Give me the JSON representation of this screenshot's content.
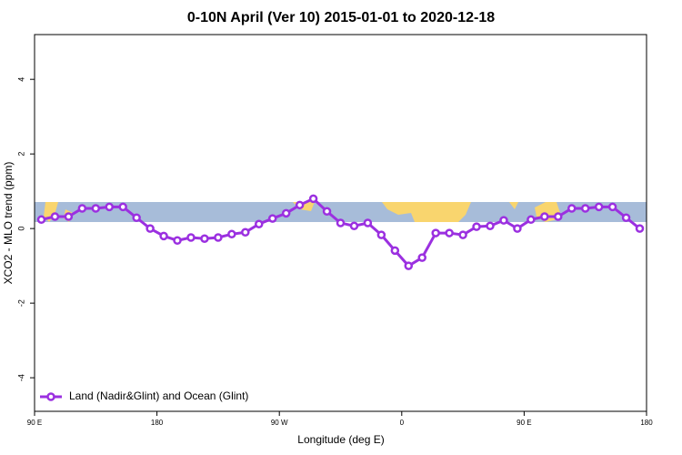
{
  "chart_data": {
    "type": "line",
    "title": "0-10N April (Ver 10)   2015-01-01 to 2020-12-18",
    "x_label": "Longitude (deg E)",
    "y_label": "XCO2 - MLO trend (ppm)",
    "x": [
      95,
      105,
      115,
      125,
      135,
      145,
      155,
      165,
      175,
      185,
      195,
      205,
      215,
      225,
      235,
      245,
      255,
      265,
      275,
      285,
      295,
      305,
      315,
      325,
      335,
      345,
      355,
      365,
      375,
      385,
      395,
      405,
      415,
      425,
      435,
      445,
      455,
      465,
      475,
      485,
      495,
      505,
      515,
      525,
      535
    ],
    "series": [
      {
        "name": "Land (Nadir&Glint) and Ocean (Glint)",
        "color": "#9b30e0",
        "values": [
          0.24,
          0.32,
          0.32,
          0.54,
          0.54,
          0.58,
          0.58,
          0.29,
          0,
          -0.2,
          -0.32,
          -0.24,
          -0.27,
          -0.24,
          -0.15,
          -0.1,
          0.12,
          0.27,
          0.41,
          0.63,
          0.8,
          0.46,
          0.15,
          0.07,
          0.15,
          -0.17,
          -0.59,
          -1.0,
          -0.78,
          -0.12,
          -0.12,
          -0.17,
          0.05,
          0.07,
          0.22,
          0,
          0.24,
          0.32,
          0.32,
          0.54,
          0.54,
          0.58,
          0.58,
          0.29,
          0
        ]
      }
    ],
    "xlim": [
      90,
      540
    ],
    "xticks": [
      {
        "value": 90,
        "label": "90 E"
      },
      180,
      {
        "value": 270,
        "label": "90 W"
      },
      {
        "value": 360,
        "label": "0"
      },
      {
        "value": 450,
        "label": "90 E"
      },
      {
        "value": 540,
        "label": "180"
      }
    ],
    "ylim": [
      -4.9,
      5.2
    ],
    "yticks": [
      -4,
      -2,
      0,
      2,
      4
    ],
    "legend": "bottom-left"
  }
}
